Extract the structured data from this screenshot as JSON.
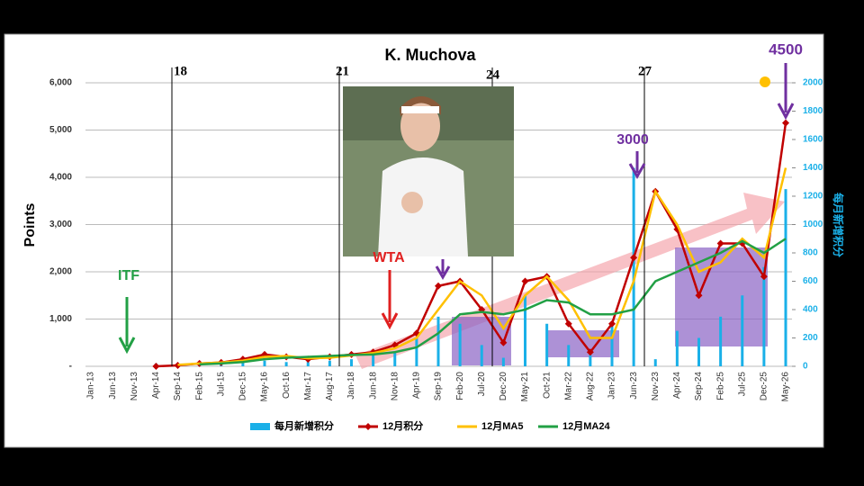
{
  "chart_data": {
    "type": "combo",
    "title": "K. Muchova",
    "y_label": "Points",
    "y2_label": "每月新增积分",
    "categories": [
      "Jan-13",
      "Jun-13",
      "Nov-13",
      "Apr-14",
      "Sep-14",
      "Feb-15",
      "Jul-15",
      "Dec-15",
      "May-16",
      "Oct-16",
      "Mar-17",
      "Aug-17",
      "Jan-18",
      "Jun-18",
      "Nov-18",
      "Apr-19",
      "Sep-19",
      "Feb-20",
      "Jul-20",
      "Dec-20",
      "May-21",
      "Oct-21",
      "Mar-22",
      "Aug-22",
      "Jan-23",
      "Jun-23",
      "Nov-23",
      "Apr-24",
      "Sep-24",
      "Feb-25",
      "Jul-25",
      "Dec-25",
      "May-26"
    ],
    "series": [
      {
        "name": "每月新增积分",
        "type": "bar",
        "axis": "y2",
        "color": "#1ab0e8",
        "values": [
          0,
          0,
          0,
          20,
          20,
          30,
          40,
          30,
          40,
          30,
          30,
          40,
          50,
          80,
          100,
          200,
          350,
          300,
          150,
          60,
          500,
          300,
          150,
          80,
          300,
          1400,
          50,
          250,
          200,
          350,
          500,
          700,
          1250
        ]
      },
      {
        "name": "12月积分",
        "type": "line",
        "marker": "diamond",
        "color": "#c00000",
        "values": [
          null,
          null,
          null,
          0,
          20,
          60,
          80,
          150,
          250,
          200,
          150,
          200,
          250,
          300,
          450,
          700,
          1700,
          1800,
          1200,
          500,
          1800,
          1900,
          900,
          300,
          900,
          2300,
          3700,
          2900,
          1500,
          2600,
          2600,
          1900,
          5150
        ]
      },
      {
        "name": "12月MA5",
        "type": "line",
        "color": "#ffc000",
        "values": [
          null,
          null,
          null,
          null,
          30,
          60,
          80,
          120,
          200,
          220,
          170,
          180,
          230,
          280,
          380,
          600,
          1200,
          1800,
          1500,
          800,
          1500,
          1900,
          1400,
          600,
          600,
          1800,
          3700,
          3000,
          2000,
          2200,
          2700,
          2300,
          4200
        ]
      },
      {
        "name": "12月MA24",
        "type": "line",
        "color": "#22a045",
        "values": [
          null,
          null,
          null,
          null,
          null,
          40,
          60,
          90,
          150,
          180,
          200,
          220,
          240,
          250,
          300,
          400,
          700,
          1100,
          1150,
          1100,
          1200,
          1400,
          1350,
          1100,
          1100,
          1200,
          1800,
          2000,
          2200,
          2400,
          2650,
          2400,
          2700
        ]
      }
    ],
    "ylim": [
      0,
      6000
    ],
    "yticks": [
      {
        "value": 0,
        "label": "-"
      },
      {
        "value": 1000,
        "label": "1,000"
      },
      {
        "value": 2000,
        "label": "2,000"
      },
      {
        "value": 3000,
        "label": "3,000"
      },
      {
        "value": 4000,
        "label": "4,000"
      },
      {
        "value": 5000,
        "label": "5,000"
      },
      {
        "value": 6000,
        "label": "6,000"
      }
    ],
    "y2lim": [
      0,
      2000
    ],
    "y2ticks": [
      0,
      200,
      400,
      600,
      800,
      1000,
      1200,
      1400,
      1600,
      1800,
      2000
    ],
    "grid": true,
    "annotations": [
      "18",
      "21",
      "24",
      "27",
      "ITF",
      "WTA",
      "3000",
      "4500"
    ]
  }
}
